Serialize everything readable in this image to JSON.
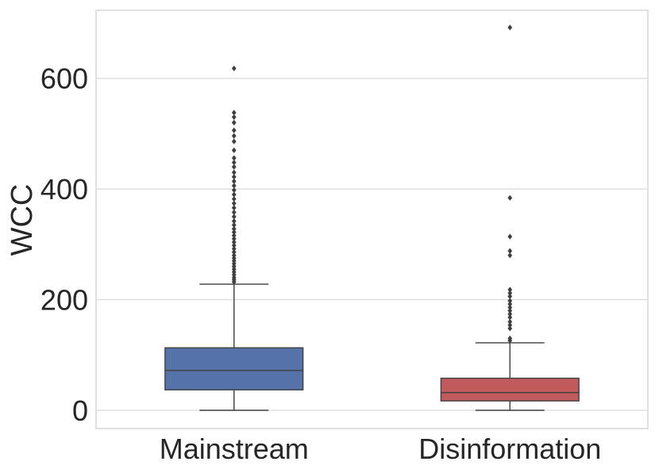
{
  "chart_data": {
    "type": "boxplot",
    "title": "",
    "xlabel": "",
    "ylabel": "WCC",
    "ylim": [
      -33,
      723
    ],
    "yticks": [
      0,
      200,
      400,
      600
    ],
    "grid": true,
    "categories": [
      "Mainstream",
      "Disinformation"
    ],
    "series": [
      {
        "name": "Mainstream",
        "color": "#5573a8",
        "whisker_low": 0,
        "q1": 37,
        "median": 72,
        "q3": 113,
        "whisker_high": 228,
        "outliers": [
          232,
          236,
          240,
          245,
          250,
          255,
          260,
          265,
          270,
          275,
          280,
          286,
          292,
          298,
          304,
          310,
          316,
          322,
          328,
          335,
          342,
          350,
          358,
          366,
          374,
          382,
          390,
          398,
          406,
          414,
          422,
          430,
          440,
          448,
          456,
          470,
          486,
          496,
          506,
          520,
          530,
          538,
          618
        ]
      },
      {
        "name": "Disinformation",
        "color": "#c05a5d",
        "whisker_low": 0,
        "q1": 17,
        "median": 32,
        "q3": 58,
        "whisker_high": 122,
        "outliers": [
          126,
          130,
          148,
          154,
          160,
          168,
          174,
          180,
          186,
          192,
          198,
          206,
          212,
          218,
          280,
          288,
          314,
          384,
          692
        ]
      }
    ]
  }
}
